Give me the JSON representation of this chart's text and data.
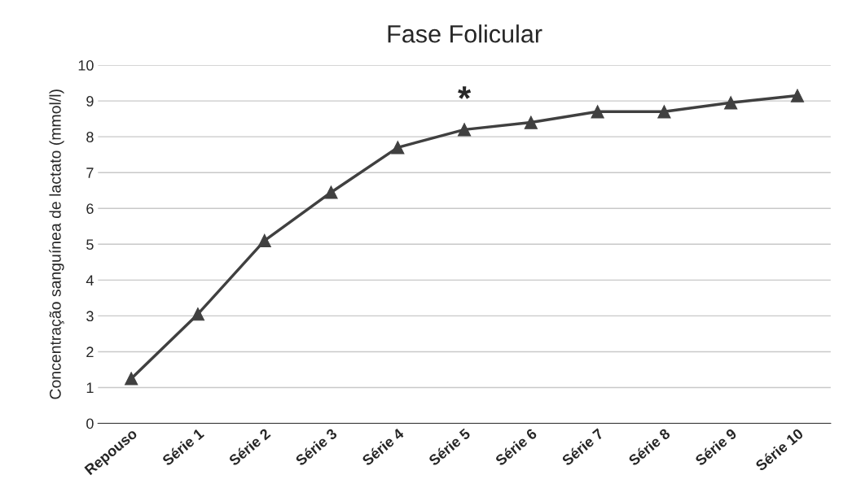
{
  "chart_data": {
    "type": "line",
    "title": "Fase Folicular",
    "ylabel": "Concentração sanguínea de lactato (mmol/l)",
    "categories": [
      "Repouso",
      "Série 1",
      "Série 2",
      "Série 3",
      "Série 4",
      "Série 5",
      "Série 6",
      "Série 7",
      "Série 8",
      "Série 9",
      "Série 10"
    ],
    "series": [
      {
        "color": "#404040",
        "values": [
          1.25,
          3.05,
          5.1,
          6.45,
          7.7,
          8.2,
          8.4,
          8.7,
          8.7,
          8.95,
          9.15
        ]
      }
    ],
    "ylim": [
      0,
      10
    ],
    "yticks": [
      0,
      1,
      2,
      3,
      4,
      5,
      6,
      7,
      8,
      9,
      10
    ],
    "grid": "y",
    "marker": "triangle",
    "line_style": "solid",
    "legend": false,
    "annotations": [
      "*"
    ]
  }
}
